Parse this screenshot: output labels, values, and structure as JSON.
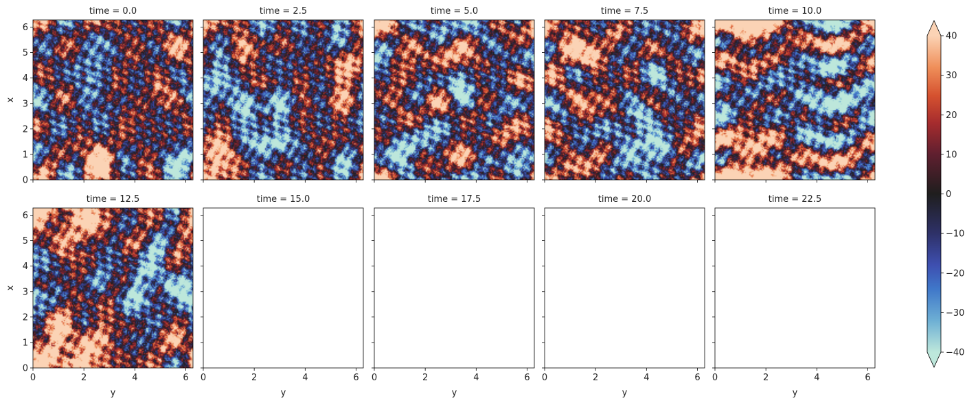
{
  "chart_data": {
    "type": "heatmap",
    "layout": {
      "rows": 2,
      "cols": 5
    },
    "panels": [
      {
        "title": "time = 0.0",
        "has_data": true,
        "seed": 11,
        "features": [
          [
            4.0,
            2.3,
            -38,
            0.6
          ],
          [
            0.9,
            5.9,
            -35,
            0.4
          ],
          [
            2.8,
            5.6,
            -20,
            0.5
          ],
          [
            1.2,
            2.6,
            25,
            0.5
          ],
          [
            0.3,
            2.8,
            30,
            0.5
          ],
          [
            3.6,
            4.9,
            32,
            0.6
          ],
          [
            5.2,
            0.3,
            20,
            0.4
          ]
        ]
      },
      {
        "title": "time = 2.5",
        "has_data": true,
        "seed": 23,
        "features": [
          [
            2.8,
            2.4,
            -40,
            0.8
          ],
          [
            1.4,
            3.0,
            -32,
            0.5
          ],
          [
            6.0,
            5.2,
            -30,
            0.4
          ],
          [
            4.8,
            1.5,
            26,
            0.4
          ],
          [
            0.5,
            0.5,
            22,
            0.5
          ],
          [
            4.0,
            5.3,
            20,
            0.5
          ],
          [
            2.0,
            5.8,
            25,
            0.4
          ]
        ]
      },
      {
        "title": "time = 5.0",
        "has_data": true,
        "seed": 37,
        "features": [
          [
            1.2,
            1.5,
            -40,
            0.5
          ],
          [
            3.6,
            3.9,
            -30,
            0.6
          ],
          [
            4.5,
            1.4,
            32,
            0.5
          ],
          [
            2.4,
            4.3,
            20,
            0.6
          ],
          [
            5.4,
            3.5,
            18,
            0.5
          ],
          [
            0.7,
            4.6,
            -25,
            0.5
          ],
          [
            6.0,
            1.7,
            -28,
            0.3
          ]
        ]
      },
      {
        "title": "time = 7.5",
        "has_data": true,
        "seed": 41,
        "features": [
          [
            5.3,
            1.3,
            38,
            0.8
          ],
          [
            0.9,
            4.1,
            -40,
            0.6
          ],
          [
            2.0,
            3.7,
            -30,
            0.8
          ],
          [
            4.1,
            4.5,
            -22,
            0.5
          ],
          [
            3.2,
            2.0,
            24,
            0.5
          ],
          [
            0.5,
            1.0,
            22,
            0.4
          ],
          [
            1.7,
            5.8,
            24,
            0.4
          ]
        ]
      },
      {
        "title": "time = 10.0",
        "has_data": true,
        "seed": 53,
        "features": [
          [
            5.9,
            1.5,
            34,
            1.0
          ],
          [
            0.6,
            1.3,
            35,
            1.0
          ],
          [
            2.9,
            4.5,
            -38,
            1.0
          ],
          [
            3.0,
            0.3,
            -30,
            0.4
          ],
          [
            3.0,
            6.1,
            -28,
            0.4
          ],
          [
            1.7,
            5.2,
            18,
            0.5
          ],
          [
            4.3,
            2.5,
            -16,
            0.8
          ]
        ]
      },
      {
        "title": "time = 12.5",
        "has_data": true,
        "seed": 67,
        "features": [
          [
            5.8,
            1.6,
            32,
            1.2
          ],
          [
            0.8,
            1.5,
            32,
            1.2
          ],
          [
            3.2,
            4.7,
            -34,
            1.1
          ],
          [
            2.9,
            0.2,
            -26,
            0.5
          ],
          [
            2.7,
            6.2,
            -38,
            0.3
          ],
          [
            1.2,
            5.7,
            20,
            0.6
          ],
          [
            4.1,
            2.0,
            -12,
            1.0
          ]
        ]
      },
      {
        "title": "time = 15.0",
        "has_data": false
      },
      {
        "title": "time = 17.5",
        "has_data": false
      },
      {
        "title": "time = 20.0",
        "has_data": false
      },
      {
        "title": "time = 22.5",
        "has_data": false
      }
    ],
    "xlabel": "y",
    "ylabel": "x",
    "xlim": [
      0,
      6.2832
    ],
    "ylim": [
      0,
      6.2832
    ],
    "x_ticks": [
      0,
      2,
      4,
      6
    ],
    "y_ticks": [
      0,
      1,
      2,
      3,
      4,
      5,
      6
    ],
    "colorbar": {
      "vmin": -40,
      "vmax": 40,
      "ticks": [
        40,
        30,
        20,
        10,
        0,
        -10,
        -20,
        -30,
        -40
      ],
      "extend": "both",
      "colormap": "icefire",
      "stops": [
        {
          "v": -1.0,
          "c": "#bde7db"
        },
        {
          "v": -0.8,
          "c": "#6dafd4"
        },
        {
          "v": -0.6,
          "c": "#3f77c9"
        },
        {
          "v": -0.45,
          "c": "#3e4fb0"
        },
        {
          "v": -0.25,
          "c": "#2e3168"
        },
        {
          "v": 0.0,
          "c": "#1f1e1e"
        },
        {
          "v": 0.25,
          "c": "#5f1f2f"
        },
        {
          "v": 0.45,
          "c": "#a62c2e"
        },
        {
          "v": 0.62,
          "c": "#d5512f"
        },
        {
          "v": 0.8,
          "c": "#ef8f5a"
        },
        {
          "v": 1.0,
          "c": "#fbd3b5"
        }
      ]
    }
  }
}
